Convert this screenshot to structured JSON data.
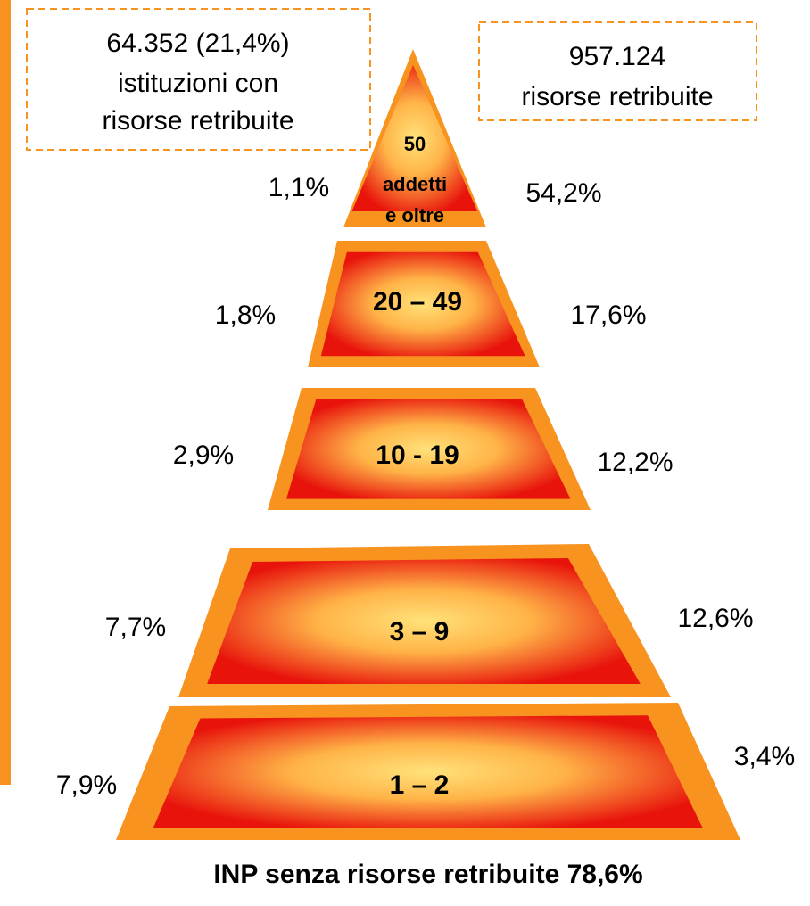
{
  "boxes": [
    {
      "lines": [
        "64.352 (21,4%)",
        "istituzioni con",
        "risorse retribuite"
      ]
    },
    {
      "lines": [
        "957.124",
        "risorse retribuite"
      ]
    }
  ],
  "levels": [
    {
      "label": [
        "50",
        "addetti",
        "e oltre"
      ],
      "left": "1,1%",
      "right": "54,2%"
    },
    {
      "label": [
        "20 – 49"
      ],
      "left": "1,8%",
      "right": "17,6%"
    },
    {
      "label": [
        "10 - 19"
      ],
      "left": "2,9%",
      "right": "12,2%"
    },
    {
      "label": [
        "3 – 9"
      ],
      "left": "7,7%",
      "right": "12,6%"
    },
    {
      "label": [
        "1 – 2"
      ],
      "left": "7,9%",
      "right": "3,4%"
    }
  ],
  "footer": "INP senza risorse retribuite 78,6%"
}
